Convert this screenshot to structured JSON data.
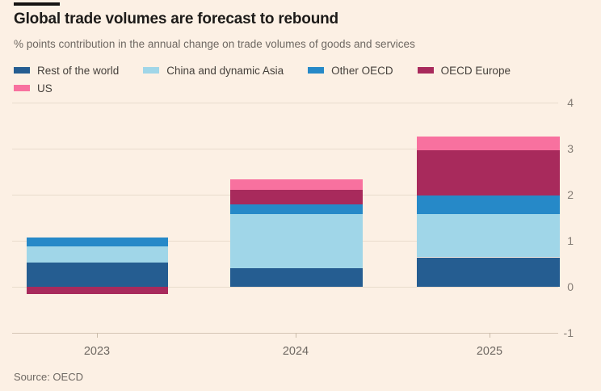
{
  "header": {
    "title": "Global trade volumes are forecast to rebound",
    "subtitle": "% points contribution in the annual change on trade volumes of goods and services"
  },
  "colors": {
    "background": "#fcf0e4",
    "title_text": "#1d1b19",
    "muted_text": "#6e6862",
    "gridline": "#e9dccd"
  },
  "chart_data": {
    "type": "bar",
    "stacked": true,
    "title": "Global trade volumes are forecast to rebound",
    "subtitle": "% points contribution in the annual change on trade volumes of goods and services",
    "categories": [
      "2023",
      "2024",
      "2025"
    ],
    "series": [
      {
        "name": "Rest of the world",
        "color": "#255d91",
        "values": [
          0.53,
          0.41,
          0.64
        ]
      },
      {
        "name": "China and dynamic Asia",
        "color": "#a0d6e8",
        "values": [
          0.35,
          1.17,
          0.94
        ]
      },
      {
        "name": "Other OECD",
        "color": "#2689c8",
        "values": [
          0.19,
          0.21,
          0.4
        ]
      },
      {
        "name": "OECD Europe",
        "color": "#a82a5c",
        "values": [
          -0.16,
          0.32,
          0.98
        ]
      },
      {
        "name": "US",
        "color": "#f8719f",
        "values": [
          0,
          0.23,
          0.31
        ]
      }
    ],
    "ylim": [
      -1,
      4
    ],
    "yticks": [
      4,
      3,
      2,
      1,
      0,
      -1
    ],
    "grid": "horizontal",
    "legend_position": "top",
    "source": "Source: OECD"
  }
}
